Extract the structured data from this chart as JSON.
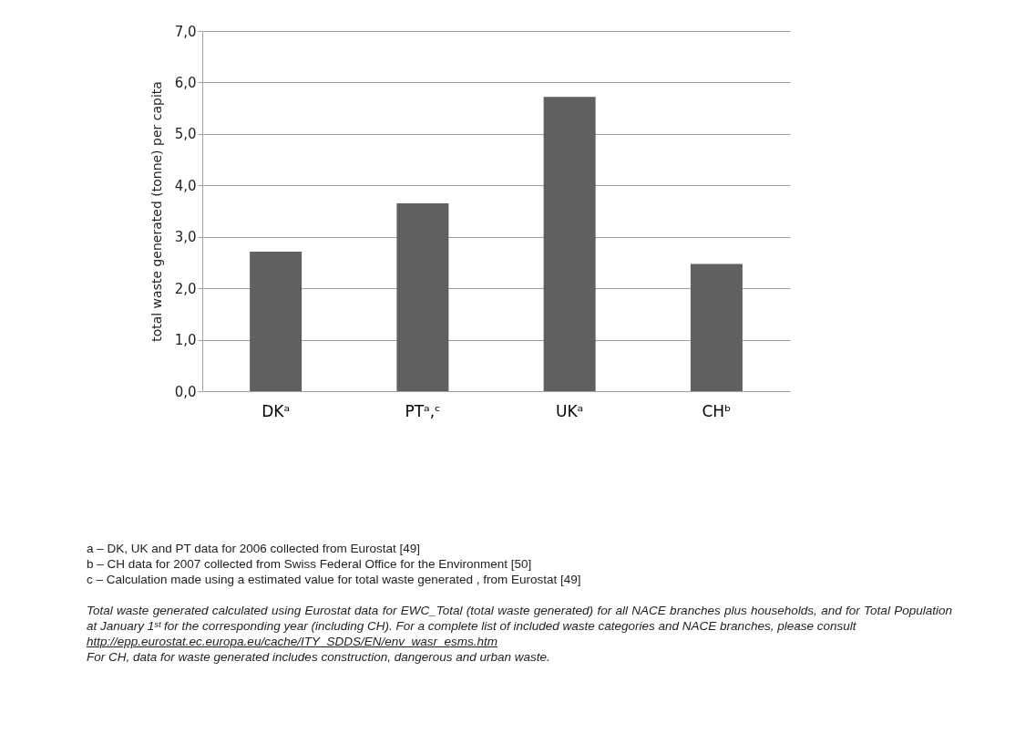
{
  "chart_data": {
    "type": "bar",
    "ylabel": "total waste generated (tonne) per capita",
    "categories": [
      "DKᵃ",
      "PTᵃ,ᶜ",
      "UKᵃ",
      "CHᵇ"
    ],
    "values": [
      2.71,
      3.65,
      5.72,
      2.47
    ],
    "color": "#606060",
    "ylim": [
      0,
      7
    ],
    "yticks": [
      {
        "value": 0,
        "label": "0,0"
      },
      {
        "value": 1,
        "label": "1,0"
      },
      {
        "value": 2,
        "label": "2,0"
      },
      {
        "value": 3,
        "label": "3,0"
      },
      {
        "value": 4,
        "label": "4,0"
      },
      {
        "value": 5,
        "label": "5,0"
      },
      {
        "value": 6,
        "label": "6,0"
      },
      {
        "value": 7,
        "label": "7,0"
      }
    ],
    "grid": "y",
    "annotations": [
      "a – DK, UK and PT data for 2006 collected from Eurostat [49]",
      "b – CH data for 2007 collected from Swiss Federal Office for the Environment [50]",
      "c – Calculation made using a estimated value for total waste generated , from Eurostat [49]",
      "Total waste generated calculated using Eurostat data for EWC_Total (total waste generated) for all NACE branches plus households, and for Total Population at January 1ˢᵗ for the corresponding year (including CH). For a complete list of included waste categories and NACE branches, please consult",
      "http://epp.eurostat.ec.europa.eu/cache/ITY_SDDS/EN/env_wasr_esms.htm",
      "For CH, data for waste generated includes construction, dangerous and urban waste."
    ]
  }
}
